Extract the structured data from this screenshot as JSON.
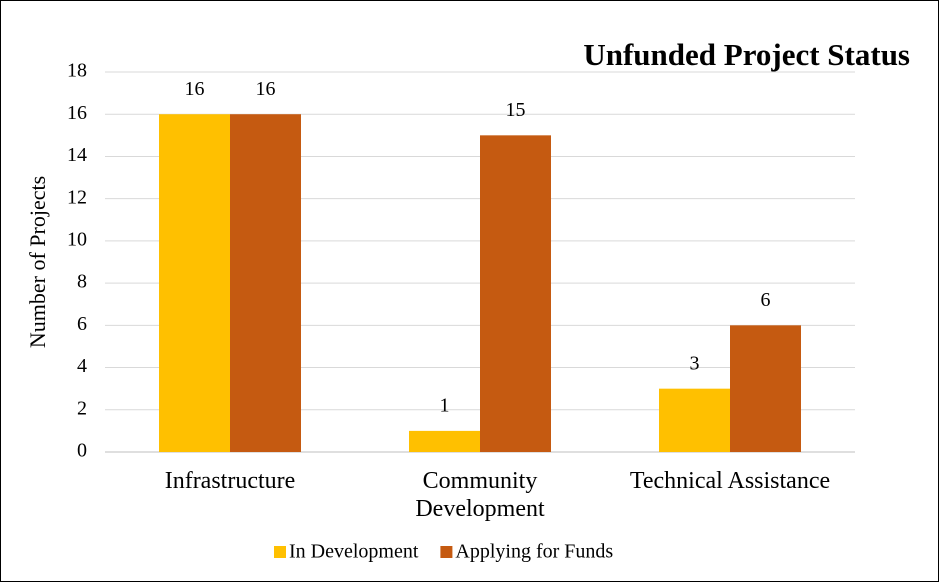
{
  "chart_data": {
    "type": "bar",
    "title": "Unfunded Project Status",
    "y_label": "Number of Projects",
    "categories": [
      "Infrastructure",
      "Community Development",
      "Technical Assistance"
    ],
    "series": [
      {
        "name": "In Development",
        "color": "#ffc000",
        "values": [
          16,
          1,
          3
        ]
      },
      {
        "name": "Applying for Funds",
        "color": "#c55a11",
        "values": [
          16,
          15,
          6
        ]
      }
    ],
    "ylim": [
      0,
      18
    ],
    "yticks": [
      0,
      2,
      4,
      6,
      8,
      10,
      12,
      14,
      16,
      18
    ],
    "grid": true,
    "legend": "bottom"
  }
}
